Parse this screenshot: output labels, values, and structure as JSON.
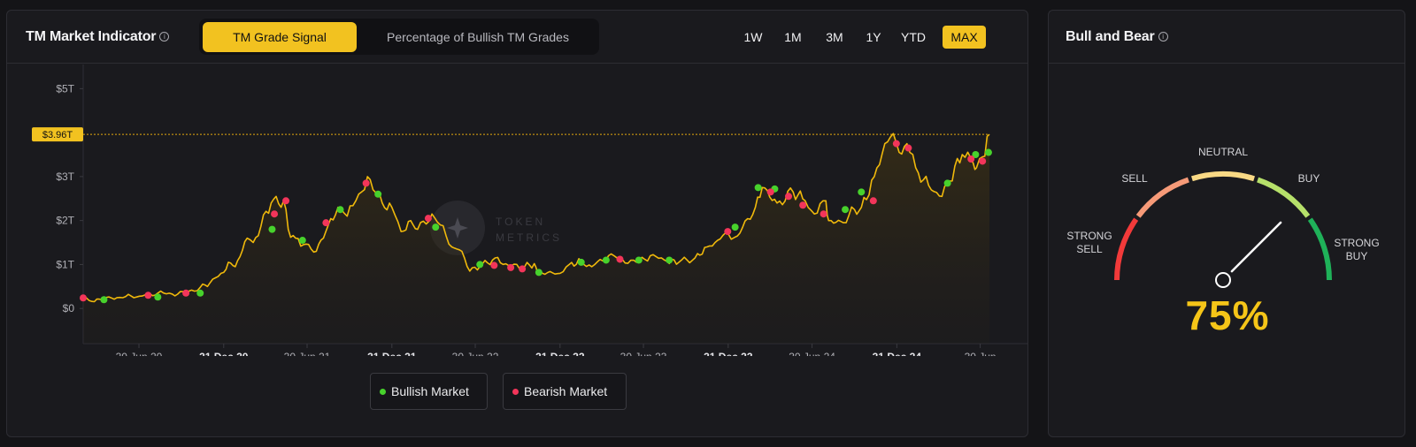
{
  "main": {
    "title": "TM Market Indicator",
    "tabs": [
      {
        "label": "TM Grade Signal",
        "active": true
      },
      {
        "label": "Percentage of Bullish TM Grades",
        "active": false
      }
    ],
    "ranges": [
      {
        "label": "1W",
        "active": false
      },
      {
        "label": "1M",
        "active": false
      },
      {
        "label": "3M",
        "active": false
      },
      {
        "label": "1Y",
        "active": false
      },
      {
        "label": "YTD",
        "active": false
      },
      {
        "label": "MAX",
        "active": true
      }
    ],
    "legend": {
      "bullish": "Bullish Market",
      "bearish": "Bearish Market"
    },
    "watermark": [
      "TOKEN",
      "METRICS"
    ],
    "current_value_tag": "$3.96T"
  },
  "gauge": {
    "title": "Bull and Bear",
    "labels": {
      "strong_sell": [
        "STRONG",
        "SELL"
      ],
      "sell": "SELL",
      "neutral": "NEUTRAL",
      "buy": "BUY",
      "strong_buy": [
        "STRONG",
        "BUY"
      ]
    },
    "value_text": "75%",
    "value": 75
  },
  "colors": {
    "accent": "#f2c220",
    "line": "#f0b90b",
    "bullish": "#47d22c",
    "bearish": "#f3355a",
    "strong_sell": "#f23a3a",
    "sell": "#f69a78",
    "neutral": "#f9d985",
    "buy": "#b6e06a",
    "strong_buy": "#1fb159"
  },
  "chart_data": {
    "type": "line",
    "x_unit": "date",
    "y_unit": "USD trillions",
    "yticks": [
      {
        "label": "$5T",
        "value": 5
      },
      {
        "label": "$3T",
        "value": 3
      },
      {
        "label": "$2T",
        "value": 2
      },
      {
        "label": "$1T",
        "value": 1
      },
      {
        "label": "$0",
        "value": 0
      }
    ],
    "ylim": [
      -0.8,
      5.55
    ],
    "reference_line": 3.96,
    "xticks": [
      {
        "label": "30 Jun 20",
        "date": "2020-06-30",
        "bold": false
      },
      {
        "label": "31 Dec 20",
        "date": "2020-12-31",
        "bold": true
      },
      {
        "label": "30 Jun 21",
        "date": "2021-06-30",
        "bold": false
      },
      {
        "label": "31 Dec 21",
        "date": "2021-12-31",
        "bold": true
      },
      {
        "label": "30 Jun 22",
        "date": "2022-06-30",
        "bold": false
      },
      {
        "label": "31 Dec 22",
        "date": "2022-12-31",
        "bold": true
      },
      {
        "label": "30 Jun 23",
        "date": "2023-06-30",
        "bold": false
      },
      {
        "label": "31 Dec 23",
        "date": "2023-12-31",
        "bold": true
      },
      {
        "label": "30 Jun 24",
        "date": "2024-06-30",
        "bold": false
      },
      {
        "label": "31 Dec 24",
        "date": "2024-12-31",
        "bold": true
      },
      {
        "label": "30 Jun",
        "date": "2025-06-30",
        "bold": false
      }
    ],
    "xlim": [
      "2020-03-01",
      "2025-07-20"
    ],
    "series": [
      {
        "values": [
          [
            "2020-03-01",
            0.24
          ],
          [
            "2020-03-20",
            0.16
          ],
          [
            "2020-04-10",
            0.2
          ],
          [
            "2020-05-01",
            0.24
          ],
          [
            "2020-06-01",
            0.27
          ],
          [
            "2020-07-01",
            0.28
          ],
          [
            "2020-08-10",
            0.35
          ],
          [
            "2020-09-10",
            0.33
          ],
          [
            "2020-10-10",
            0.36
          ],
          [
            "2020-11-10",
            0.48
          ],
          [
            "2020-12-01",
            0.58
          ],
          [
            "2020-12-31",
            0.82
          ],
          [
            "2021-01-10",
            1.05
          ],
          [
            "2021-01-25",
            0.95
          ],
          [
            "2021-02-20",
            1.6
          ],
          [
            "2021-03-05",
            1.5
          ],
          [
            "2021-04-13",
            2.4
          ],
          [
            "2021-05-10",
            2.45
          ],
          [
            "2021-05-20",
            1.8
          ],
          [
            "2021-06-05",
            1.6
          ],
          [
            "2021-06-22",
            1.45
          ],
          [
            "2021-07-20",
            1.3
          ],
          [
            "2021-08-15",
            1.9
          ],
          [
            "2021-09-05",
            2.3
          ],
          [
            "2021-09-25",
            2.1
          ],
          [
            "2021-10-20",
            2.6
          ],
          [
            "2021-11-08",
            3.0
          ],
          [
            "2021-11-20",
            2.7
          ],
          [
            "2021-12-10",
            2.4
          ],
          [
            "2021-12-31",
            2.3
          ],
          [
            "2022-01-20",
            1.75
          ],
          [
            "2022-02-10",
            2.0
          ],
          [
            "2022-02-25",
            1.8
          ],
          [
            "2022-03-28",
            2.15
          ],
          [
            "2022-04-15",
            1.9
          ],
          [
            "2022-05-10",
            1.4
          ],
          [
            "2022-06-01",
            1.3
          ],
          [
            "2022-06-18",
            0.85
          ],
          [
            "2022-07-10",
            0.95
          ],
          [
            "2022-08-12",
            1.15
          ],
          [
            "2022-09-10",
            0.98
          ],
          [
            "2022-10-10",
            0.93
          ],
          [
            "2022-11-05",
            1.02
          ],
          [
            "2022-11-12",
            0.82
          ],
          [
            "2022-12-31",
            0.8
          ],
          [
            "2023-01-20",
            1.0
          ],
          [
            "2023-02-15",
            1.08
          ],
          [
            "2023-03-10",
            0.95
          ],
          [
            "2023-04-15",
            1.2
          ],
          [
            "2023-05-15",
            1.12
          ],
          [
            "2023-06-15",
            1.05
          ],
          [
            "2023-07-15",
            1.2
          ],
          [
            "2023-08-20",
            1.07
          ],
          [
            "2023-09-15",
            1.05
          ],
          [
            "2023-10-20",
            1.15
          ],
          [
            "2023-11-15",
            1.4
          ],
          [
            "2023-12-31",
            1.7
          ],
          [
            "2024-01-20",
            1.65
          ],
          [
            "2024-02-28",
            2.3
          ],
          [
            "2024-03-14",
            2.75
          ],
          [
            "2024-04-15",
            2.4
          ],
          [
            "2024-05-20",
            2.65
          ],
          [
            "2024-06-15",
            2.45
          ],
          [
            "2024-07-05",
            2.15
          ],
          [
            "2024-07-30",
            2.45
          ],
          [
            "2024-08-05",
            2.0
          ],
          [
            "2024-09-06",
            1.95
          ],
          [
            "2024-09-30",
            2.25
          ],
          [
            "2024-10-15",
            2.3
          ],
          [
            "2024-11-12",
            3.0
          ],
          [
            "2024-12-05",
            3.75
          ],
          [
            "2024-12-17",
            3.9
          ],
          [
            "2025-01-05",
            3.55
          ],
          [
            "2025-01-22",
            3.75
          ],
          [
            "2025-02-10",
            3.2
          ],
          [
            "2025-03-10",
            2.8
          ],
          [
            "2025-04-08",
            2.55
          ],
          [
            "2025-04-25",
            2.9
          ],
          [
            "2025-05-22",
            3.5
          ],
          [
            "2025-06-15",
            3.3
          ],
          [
            "2025-06-22",
            3.2
          ],
          [
            "2025-07-05",
            3.45
          ],
          [
            "2025-07-20",
            3.96
          ]
        ]
      }
    ],
    "bullish_points": [
      [
        "2020-04-15",
        0.2
      ],
      [
        "2020-08-10",
        0.26
      ],
      [
        "2020-11-10",
        0.35
      ],
      [
        "2021-04-15",
        1.8
      ],
      [
        "2021-06-20",
        1.55
      ],
      [
        "2021-09-10",
        2.25
      ],
      [
        "2021-12-01",
        2.6
      ],
      [
        "2022-04-05",
        1.85
      ],
      [
        "2022-07-10",
        1.0
      ],
      [
        "2022-11-15",
        0.82
      ],
      [
        "2023-02-15",
        1.05
      ],
      [
        "2023-04-10",
        1.1
      ],
      [
        "2023-06-20",
        1.1
      ],
      [
        "2023-08-25",
        1.1
      ],
      [
        "2024-01-15",
        1.85
      ],
      [
        "2024-03-05",
        2.75
      ],
      [
        "2024-04-10",
        2.72
      ],
      [
        "2024-09-10",
        2.25
      ],
      [
        "2024-10-15",
        2.65
      ],
      [
        "2025-04-20",
        2.85
      ],
      [
        "2025-06-20",
        3.5
      ],
      [
        "2025-07-18",
        3.55
      ]
    ],
    "bearish_points": [
      [
        "2020-03-01",
        0.24
      ],
      [
        "2020-07-20",
        0.3
      ],
      [
        "2020-10-10",
        0.35
      ],
      [
        "2021-04-20",
        2.15
      ],
      [
        "2021-05-15",
        2.45
      ],
      [
        "2021-08-10",
        1.95
      ],
      [
        "2021-11-05",
        2.85
      ],
      [
        "2022-03-20",
        2.05
      ],
      [
        "2022-08-10",
        0.98
      ],
      [
        "2022-09-15",
        0.93
      ],
      [
        "2022-10-10",
        0.9
      ],
      [
        "2023-05-10",
        1.12
      ],
      [
        "2023-12-30",
        1.75
      ],
      [
        "2024-04-01",
        2.65
      ],
      [
        "2024-05-10",
        2.55
      ],
      [
        "2024-06-10",
        2.35
      ],
      [
        "2024-07-25",
        2.15
      ],
      [
        "2024-11-10",
        2.45
      ],
      [
        "2024-12-30",
        3.75
      ],
      [
        "2025-01-25",
        3.65
      ],
      [
        "2025-06-10",
        3.4
      ],
      [
        "2025-07-05",
        3.35
      ]
    ]
  }
}
